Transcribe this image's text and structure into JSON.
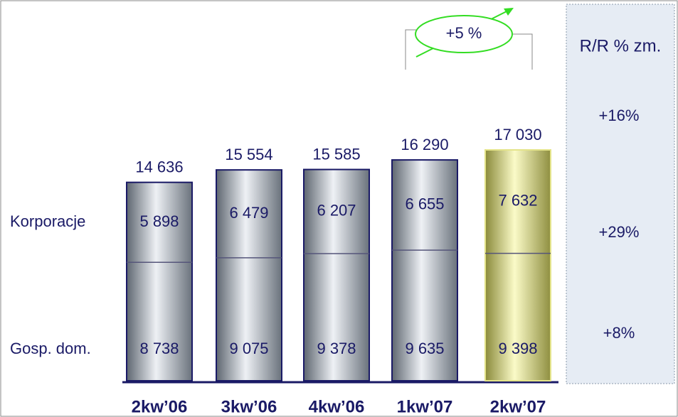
{
  "chart_data": {
    "type": "stacked_bar",
    "categories": [
      "2kw’06",
      "3kw’06",
      "4kw’06",
      "1kw’07",
      "2kw’07"
    ],
    "series": [
      {
        "name": "Gosp. dom.",
        "values": [
          8738,
          9075,
          9378,
          9635,
          9398
        ],
        "value_labels": [
          "8 738",
          "9 075",
          "9 378",
          "9 635",
          "9 398"
        ]
      },
      {
        "name": "Korporacje",
        "values": [
          5898,
          6479,
          6207,
          6655,
          7632
        ],
        "value_labels": [
          "5 898",
          "6 479",
          "6 207",
          "6 655",
          "7 632"
        ]
      }
    ],
    "totals": [
      14636,
      15554,
      15585,
      16290,
      17030
    ],
    "total_labels": [
      "14 636",
      "15 554",
      "15 585",
      "16 290",
      "17 030"
    ],
    "bar_color": "#aab3bf",
    "highlight_color": "#e4e48a",
    "highlight_index": 4,
    "annotation": {
      "value": 5,
      "label": "+5 %"
    },
    "yoy": {
      "title": "R/R % zm.",
      "values": [
        16,
        29,
        8
      ],
      "labels": [
        "+16%",
        "+29%",
        "+8%"
      ]
    }
  }
}
